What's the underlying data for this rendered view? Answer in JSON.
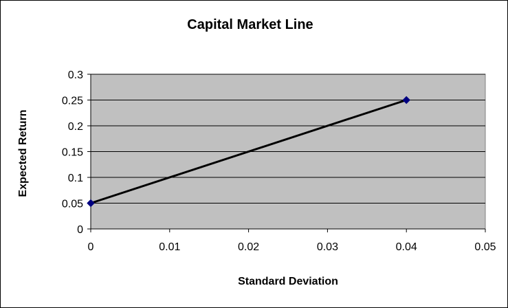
{
  "chart_data": {
    "type": "line",
    "title": "Capital Market Line",
    "xlabel": "Standard Deviation",
    "ylabel": "Expected Return",
    "xlim": [
      0,
      0.05
    ],
    "ylim": [
      0,
      0.3
    ],
    "xticks": [
      "0",
      "0.01",
      "0.02",
      "0.03",
      "0.04",
      "0.05"
    ],
    "yticks": [
      "0",
      "0.05",
      "0.1",
      "0.15",
      "0.2",
      "0.25",
      "0.3"
    ],
    "grid": true,
    "legend": "none",
    "series": [
      {
        "x": [
          0,
          0.04
        ],
        "y": [
          0.05,
          0.25
        ],
        "color": "#000000",
        "marker": "diamond",
        "marker_color": "#000080"
      }
    ],
    "plot_background": "#c0c0c0"
  }
}
